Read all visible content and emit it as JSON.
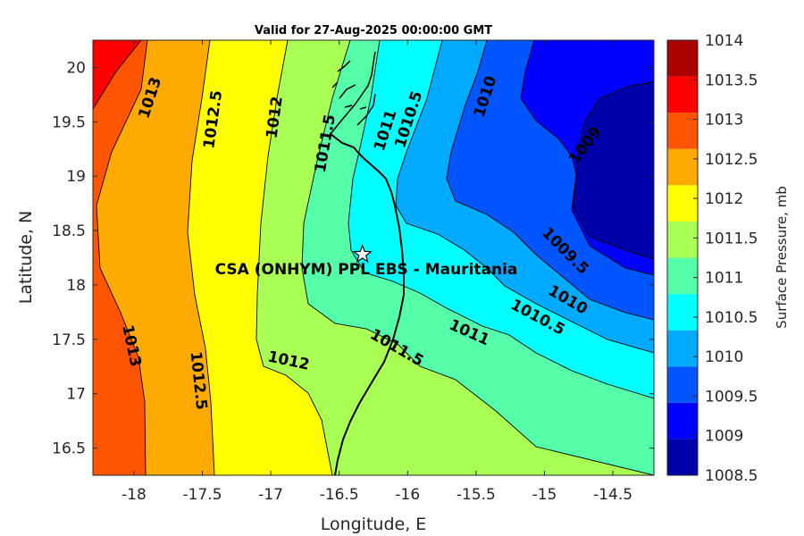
{
  "title": "Valid for 27-Aug-2025 00:00:00 GMT",
  "site_label": "CSA (ONHYM) PPL EBS  - Mauritania",
  "chart_data": {
    "type": "heatmap",
    "variable": "Surface Pressure",
    "xlabel": "Longitude, E",
    "ylabel": "Latitude, N",
    "colorbar_label": "Surface Pressure, mb",
    "xlim": [
      -18.3,
      -14.2
    ],
    "ylim": [
      16.25,
      20.25
    ],
    "xticks": [
      -18,
      -17.5,
      -17,
      -16.5,
      -16,
      -15.5,
      -15,
      -14.5
    ],
    "xtick_labels": [
      "-18",
      "-17.5",
      "-17",
      "-16.5",
      "-16",
      "-15.5",
      "-15",
      "-14.5"
    ],
    "yticks": [
      16.5,
      17,
      17.5,
      18,
      18.5,
      19,
      19.5,
      20
    ],
    "ytick_labels": [
      "16.5",
      "17",
      "17.5",
      "18",
      "18.5",
      "19",
      "19.5",
      "20"
    ],
    "colorbar_ticks": [
      "1014",
      "1013.5",
      "1013",
      "1012.5",
      "1012",
      "1011.5",
      "1011",
      "1010.5",
      "1010",
      "1009.5",
      "1009",
      "1008.5"
    ],
    "levels": [
      1008.5,
      1009,
      1009.5,
      1010,
      1010.5,
      1011,
      1011.5,
      1012,
      1012.5,
      1013,
      1013.5,
      1014
    ],
    "level_colors": [
      "#0000aa",
      "#0000ff",
      "#0055ff",
      "#00aaff",
      "#00ffff",
      "#55ffaa",
      "#aaff55",
      "#ffff00",
      "#ffaa00",
      "#ff5500",
      "#ff0000",
      "#aa0000"
    ],
    "contour_labels": [
      {
        "text": "1013",
        "lon": -17.88,
        "lat": 19.72
      },
      {
        "text": "1012.5",
        "lon": -17.42,
        "lat": 19.52
      },
      {
        "text": "1012",
        "lon": -16.97,
        "lat": 19.54
      },
      {
        "text": "1011.5",
        "lon": -16.6,
        "lat": 19.3
      },
      {
        "text": "1011",
        "lon": -16.16,
        "lat": 19.42
      },
      {
        "text": "1010.5",
        "lon": -15.99,
        "lat": 19.52
      },
      {
        "text": "1010",
        "lon": -15.43,
        "lat": 19.73
      },
      {
        "text": "1009",
        "lon": -14.7,
        "lat": 19.28
      },
      {
        "text": "1009.5",
        "lon": -14.85,
        "lat": 18.31
      },
      {
        "text": "1010",
        "lon": -14.83,
        "lat": 17.86
      },
      {
        "text": "1010.5",
        "lon": -15.05,
        "lat": 17.7
      },
      {
        "text": "1011",
        "lon": -15.55,
        "lat": 17.56
      },
      {
        "text": "1011.5",
        "lon": -16.08,
        "lat": 17.42
      },
      {
        "text": "1012",
        "lon": -16.87,
        "lat": 17.3
      },
      {
        "text": "1012.5",
        "lon": -17.53,
        "lat": 17.12
      },
      {
        "text": "1013",
        "lon": -18.02,
        "lat": 17.44
      }
    ],
    "site": {
      "lon": -16.33,
      "lat": 18.28
    }
  }
}
